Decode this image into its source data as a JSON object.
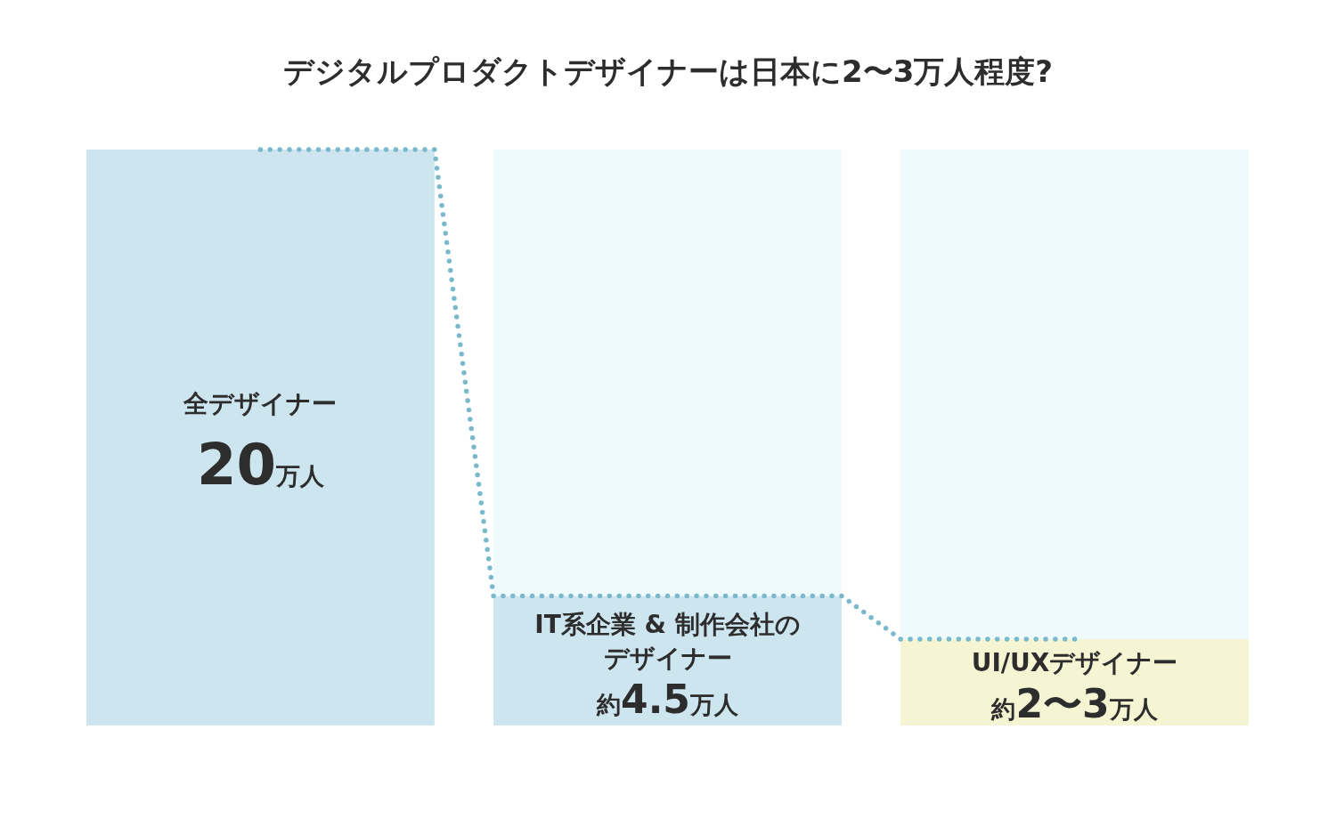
{
  "chart_data": {
    "type": "bar",
    "title": "デジタルプロダクトデザイナーは日本に2〜3万人程度?",
    "categories": [
      "全デザイナー",
      "IT系企業 & 制作会社のデザイナー",
      "UI/UXデザイナー"
    ],
    "stacked": true,
    "series": [
      {
        "colors": [
          "#cde5ef",
          "#cde5ef",
          "#f5f5d3"
        ],
        "values": [
          20,
          4.5,
          3
        ],
        "value_labels": [
          "20万人",
          "約4.5万人",
          "約2〜3万人"
        ]
      },
      {
        "color": "#eefafc",
        "values": [
          0,
          15.5,
          17
        ]
      },
      {
        "type": "step",
        "color": "#7ab9cc",
        "line_style": "dotted",
        "values": [
          20,
          4.5,
          3
        ]
      }
    ]
  }
}
